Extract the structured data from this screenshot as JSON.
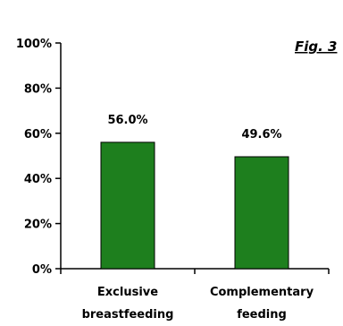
{
  "chart_data": {
    "type": "bar",
    "annotation": "Fig. 3",
    "categories": [
      [
        "Exclusive",
        "breastfeeding"
      ],
      [
        "Complementary",
        "feeding"
      ]
    ],
    "values": [
      56.0,
      49.6
    ],
    "data_labels": [
      "56.0%",
      "49.6%"
    ],
    "ylim": [
      0,
      100
    ],
    "yticks": [
      0,
      20,
      40,
      60,
      80,
      100
    ],
    "ytick_labels": [
      "0%",
      "20%",
      "40%",
      "60%",
      "80%",
      "100%"
    ],
    "grid": false,
    "legend": "none",
    "colors": {
      "bar": "#1e7f1e",
      "bar_edge": "#000000",
      "axis": "#000000"
    }
  }
}
